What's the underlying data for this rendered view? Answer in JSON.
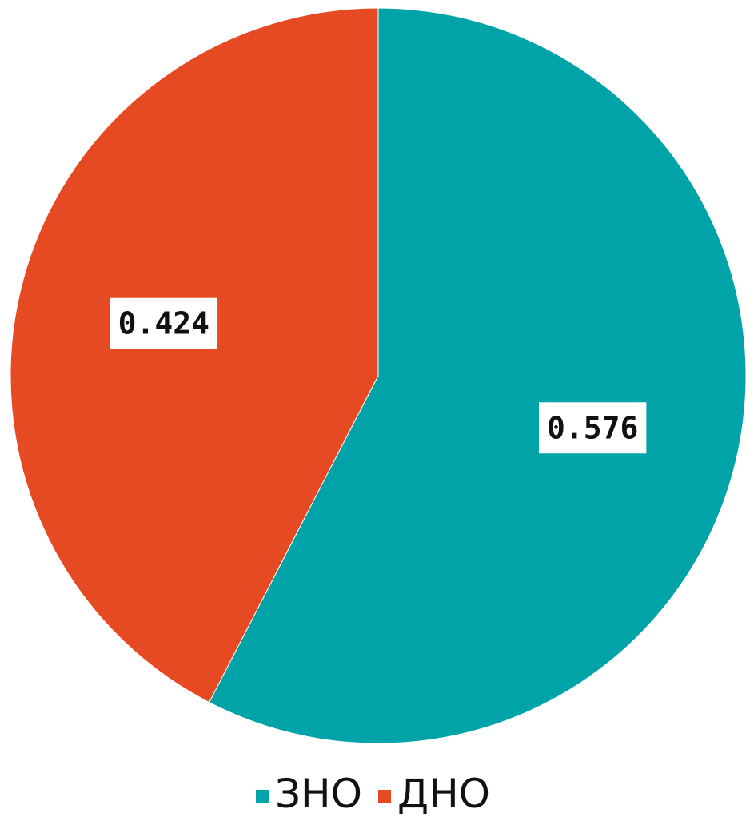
{
  "chart_data": {
    "type": "pie",
    "categories": [
      "ЗНО",
      "ДНО"
    ],
    "values": [
      0.576,
      0.424
    ],
    "data_labels": [
      "0.576",
      "0.424"
    ],
    "colors": [
      "#00A3A8",
      "#E64A22"
    ],
    "start_angle": "12 o'clock",
    "direction": "clockwise",
    "legend_position": "bottom",
    "title": ""
  }
}
